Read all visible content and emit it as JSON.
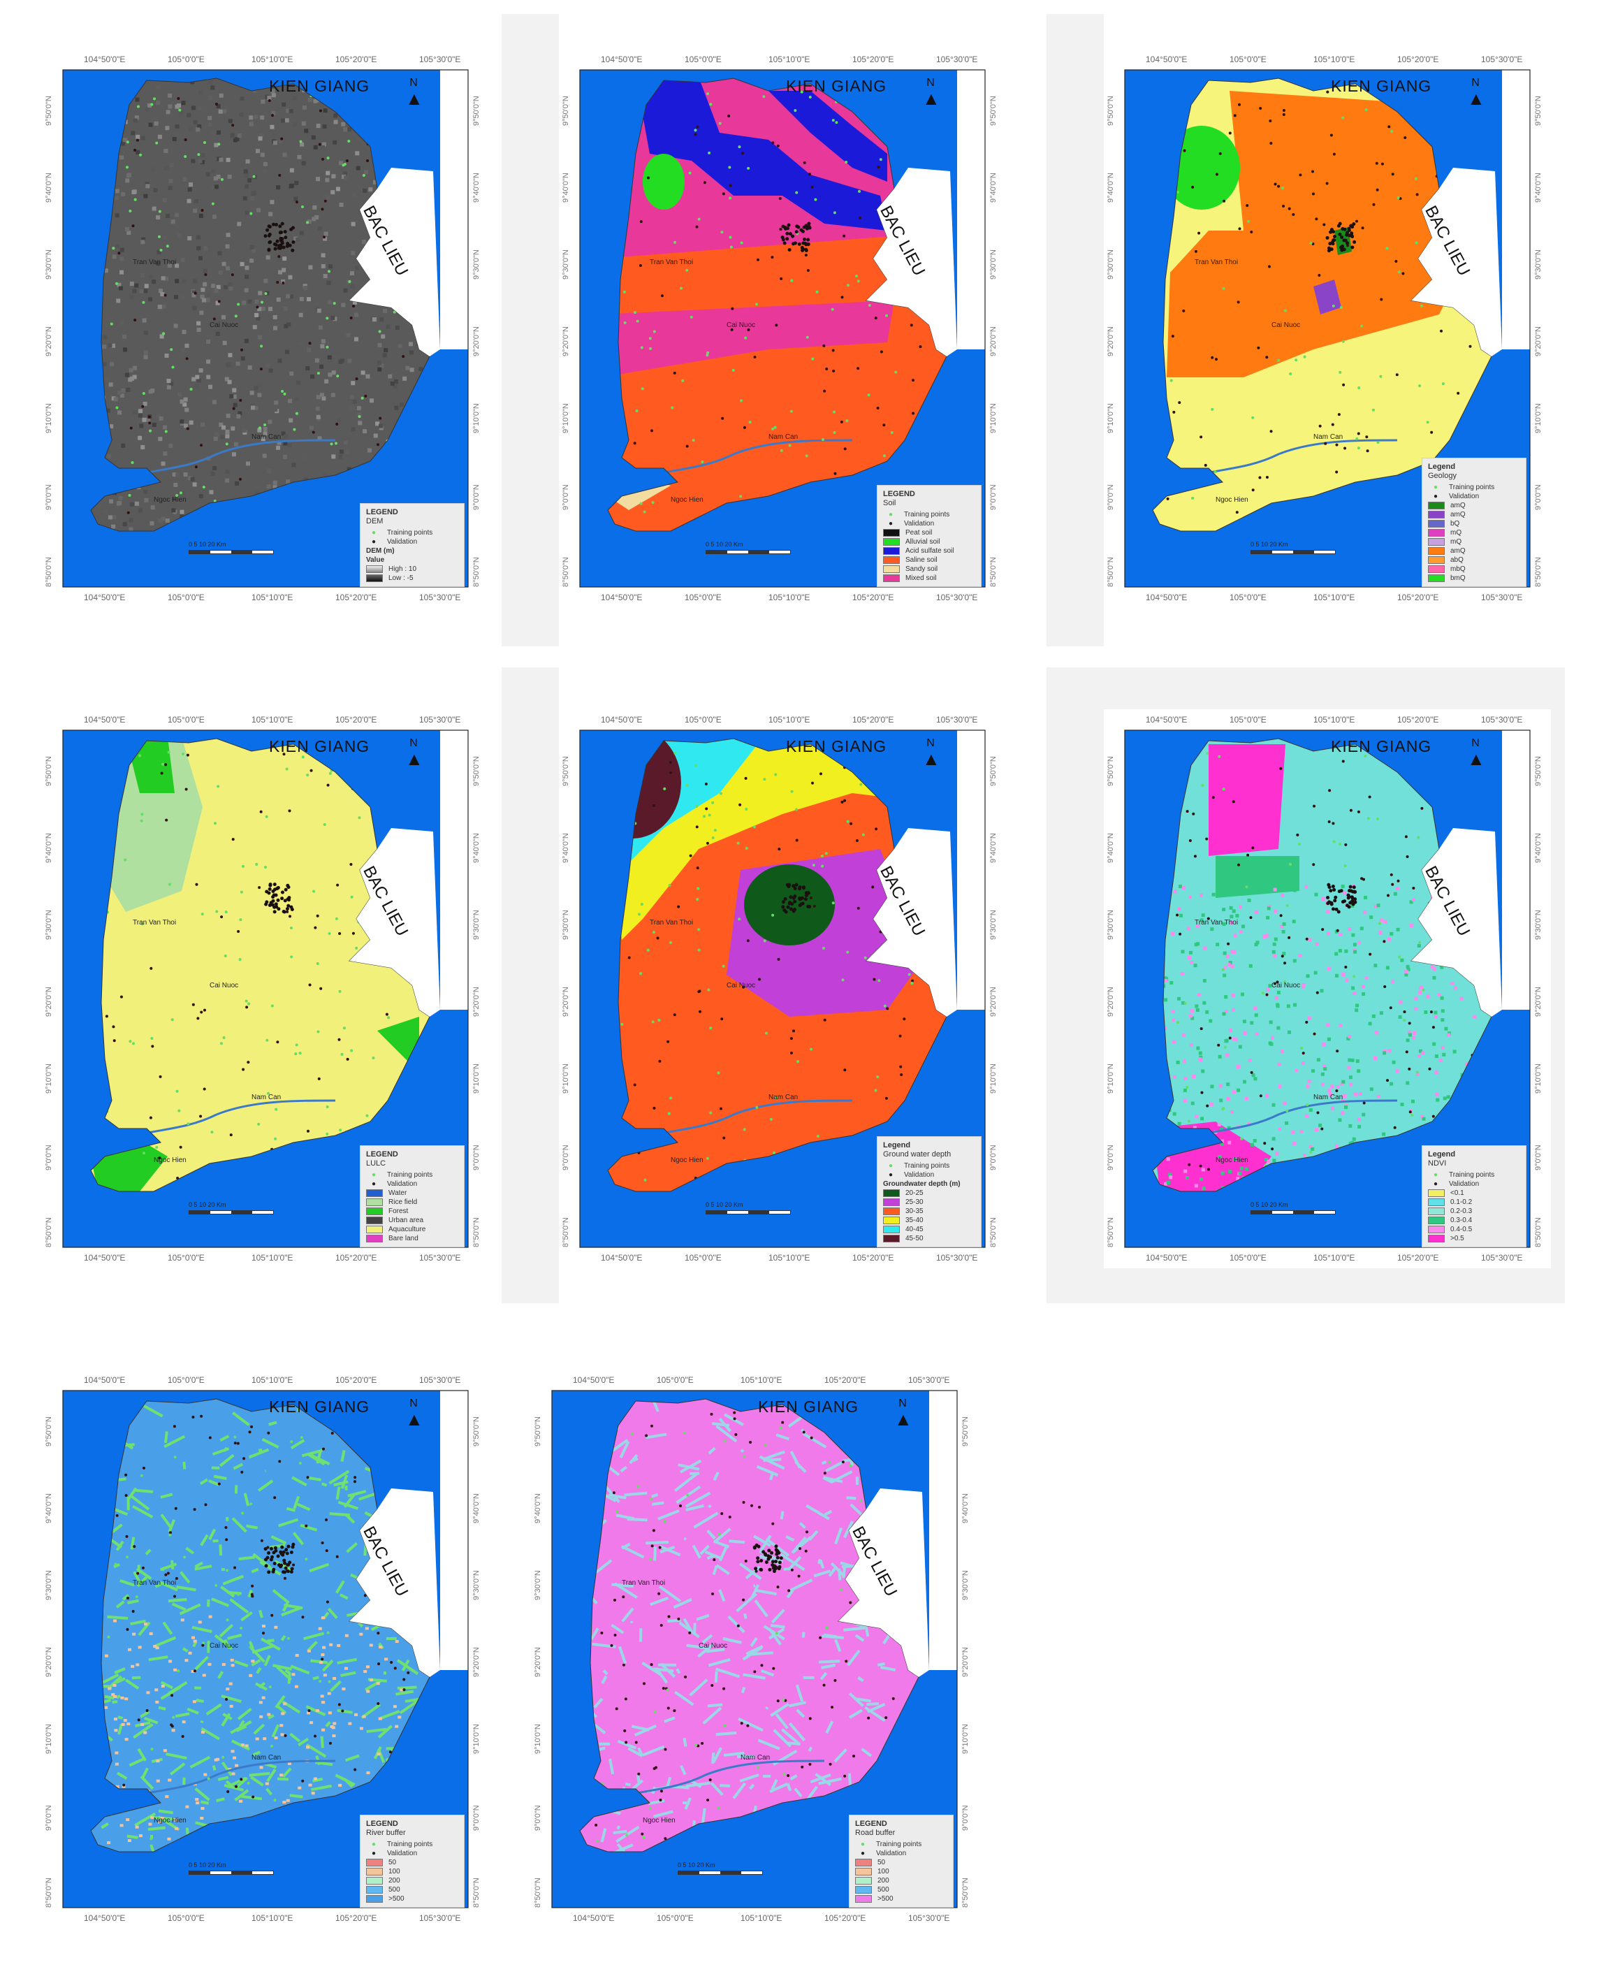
{
  "figure": {
    "maps": [
      {
        "id": "dem",
        "title": "KIEN GIANG",
        "neighbor": "BAC LIEU",
        "north": "N",
        "lon_ticks": [
          "104°50'0\"E",
          "105°0'0\"E",
          "105°10'0\"E",
          "105°20'0\"E",
          "105°30'0\"E"
        ],
        "lat_ticks": [
          "9°50'0\"N",
          "9°40'0\"N",
          "9°30'0\"N",
          "9°20'0\"N",
          "9°10'0\"N",
          "9°0'0\"N",
          "8°50'0\"N"
        ],
        "legend": {
          "head": "LEGEND",
          "sub": "DEM",
          "rows": [
            {
              "kind": "dot",
              "color": "#66dd66",
              "label": "Training points"
            },
            {
              "kind": "dot",
              "color": "#222222",
              "label": "Validation"
            },
            {
              "kind": "head",
              "label": "DEM (m)"
            },
            {
              "kind": "head",
              "label": "Value"
            },
            {
              "kind": "ramp",
              "label": "High : 10"
            },
            {
              "kind": "ramp2",
              "label": "Low : -5"
            }
          ]
        },
        "places": [
          "Tran Van Thoi",
          "Cai Nuoc",
          "Ngoc Hien",
          "Nam Can"
        ]
      },
      {
        "id": "soil",
        "title": "KIEN GIANG",
        "neighbor": "BAC LIEU",
        "north": "N",
        "lon_ticks": [
          "104°50'0\"E",
          "105°0'0\"E",
          "105°10'0\"E",
          "105°20'0\"E",
          "105°30'0\"E"
        ],
        "lat_ticks": [
          "9°50'0\"N",
          "9°40'0\"N",
          "9°30'0\"N",
          "9°20'0\"N",
          "9°10'0\"N",
          "9°0'0\"N",
          "8°50'0\"N"
        ],
        "legend": {
          "head": "LEGEND",
          "sub": "Soil",
          "rows": [
            {
              "kind": "dot",
              "color": "#66dd66",
              "label": "Training points"
            },
            {
              "kind": "dot",
              "color": "#222222",
              "label": "Validation"
            },
            {
              "kind": "sw",
              "color": "#111111",
              "label": "Peat soil"
            },
            {
              "kind": "sw",
              "color": "#22dd22",
              "label": "Alluvial soil"
            },
            {
              "kind": "sw",
              "color": "#1a1ad8",
              "label": "Acid sulfate soil"
            },
            {
              "kind": "sw",
              "color": "#ff5a1f",
              "label": "Saline soil"
            },
            {
              "kind": "sw",
              "color": "#f2dca0",
              "label": "Sandy soil"
            },
            {
              "kind": "sw",
              "color": "#e8389a",
              "label": "Mixed soil"
            }
          ]
        },
        "places": [
          "Tran Van Thoi",
          "Cai Nuoc",
          "Ngoc Hien",
          "Nam Can"
        ]
      },
      {
        "id": "geology",
        "title": "KIEN GIANG",
        "neighbor": "BAC LIEU",
        "north": "N",
        "lon_ticks": [
          "104°50'0\"E",
          "105°0'0\"E",
          "105°10'0\"E",
          "105°20'0\"E",
          "105°30'0\"E"
        ],
        "lat_ticks": [
          "9°50'0\"N",
          "9°40'0\"N",
          "9°30'0\"N",
          "9°20'0\"N",
          "9°10'0\"N",
          "9°0'0\"N",
          "8°50'0\"N"
        ],
        "legend": {
          "head": "Legend",
          "sub": "Geology",
          "rows": [
            {
              "kind": "dot",
              "color": "#66dd66",
              "label": "Training points"
            },
            {
              "kind": "dot",
              "color": "#222222",
              "label": "Validation"
            },
            {
              "kind": "sw",
              "color": "#1a8a1a",
              "label": "amQ"
            },
            {
              "kind": "sw",
              "color": "#8a44c8",
              "label": "amQ"
            },
            {
              "kind": "sw",
              "color": "#6666cc",
              "label": "bQ"
            },
            {
              "kind": "sw",
              "color": "#e040c0",
              "label": "mQ"
            },
            {
              "kind": "sw",
              "color": "#c8a0e0",
              "label": "mQ"
            },
            {
              "kind": "sw",
              "color": "#ff7a10",
              "label": "amQ"
            },
            {
              "kind": "sw",
              "color": "#ff9a30",
              "label": "abQ"
            },
            {
              "kind": "sw",
              "color": "#ff66aa",
              "label": "mbQ"
            },
            {
              "kind": "sw",
              "color": "#22dd22",
              "label": "bmQ"
            }
          ]
        },
        "places": [
          "Tran Van Thoi",
          "Cai Nuoc",
          "Ngoc Hien",
          "Nam Can"
        ]
      },
      {
        "id": "lulc",
        "title": "KIEN GIANG",
        "neighbor": "BAC LIEU",
        "north": "N",
        "lon_ticks": [
          "104°50'0\"E",
          "105°0'0\"E",
          "105°10'0\"E",
          "105°20'0\"E",
          "105°30'0\"E"
        ],
        "lat_ticks": [
          "9°50'0\"N",
          "9°40'0\"N",
          "9°30'0\"N",
          "9°20'0\"N",
          "9°10'0\"N",
          "9°0'0\"N",
          "8°50'0\"N"
        ],
        "legend": {
          "head": "LEGEND",
          "sub": "LULC",
          "rows": [
            {
              "kind": "dot",
              "color": "#66dd66",
              "label": "Training points"
            },
            {
              "kind": "dot",
              "color": "#222222",
              "label": "Validation"
            },
            {
              "kind": "sw",
              "color": "#2060d0",
              "label": "Water"
            },
            {
              "kind": "sw",
              "color": "#b0e0a0",
              "label": "Rice field"
            },
            {
              "kind": "sw",
              "color": "#22cc22",
              "label": "Forest"
            },
            {
              "kind": "sw",
              "color": "#444444",
              "label": "Urban area"
            },
            {
              "kind": "sw",
              "color": "#f0f07a",
              "label": "Aquaculture"
            },
            {
              "kind": "sw",
              "color": "#e040c0",
              "label": "Bare land"
            }
          ]
        },
        "places": [
          "Tran Van Thoi",
          "Cai Nuoc",
          "Ngoc Hien",
          "Nam Can"
        ]
      },
      {
        "id": "groundwater",
        "title": "KIEN GIANG",
        "neighbor": "BAC LIEU",
        "north": "N",
        "lon_ticks": [
          "104°50'0\"E",
          "105°0'0\"E",
          "105°10'0\"E",
          "105°20'0\"E",
          "105°30'0\"E"
        ],
        "lat_ticks": [
          "9°50'0\"N",
          "9°40'0\"N",
          "9°30'0\"N",
          "9°20'0\"N",
          "9°10'0\"N",
          "9°0'0\"N",
          "8°50'0\"N"
        ],
        "legend": {
          "head": "Legend",
          "sub": "Ground water depth",
          "rows": [
            {
              "kind": "dot",
              "color": "#66dd66",
              "label": "Training points"
            },
            {
              "kind": "dot",
              "color": "#222222",
              "label": "Validation"
            },
            {
              "kind": "head",
              "label": "Groundwater depth (m)"
            },
            {
              "kind": "sw",
              "color": "#0f5a1a",
              "label": "20-25"
            },
            {
              "kind": "sw",
              "color": "#c040d8",
              "label": "25-30"
            },
            {
              "kind": "sw",
              "color": "#ff5a1f",
              "label": "30-35"
            },
            {
              "kind": "sw",
              "color": "#f2ef20",
              "label": "35-40"
            },
            {
              "kind": "sw",
              "color": "#30e8f0",
              "label": "40-45"
            },
            {
              "kind": "sw",
              "color": "#5a1a2a",
              "label": "45-50"
            }
          ]
        },
        "places": [
          "Tran Van Thoi",
          "Cai Nuoc",
          "Ngoc Hien",
          "Nam Can"
        ]
      },
      {
        "id": "ndvi",
        "title": "KIEN GIANG",
        "neighbor": "BAC LIEU",
        "north": "N",
        "lon_ticks": [
          "104°50'0\"E",
          "105°0'0\"E",
          "105°10'0\"E",
          "105°20'0\"E",
          "105°30'0\"E"
        ],
        "lat_ticks": [
          "9°50'0\"N",
          "9°40'0\"N",
          "9°30'0\"N",
          "9°20'0\"N",
          "9°10'0\"N",
          "9°0'0\"N",
          "8°50'0\"N"
        ],
        "legend": {
          "head": "Legend",
          "sub": "NDVI",
          "rows": [
            {
              "kind": "dot",
              "color": "#66dd66",
              "label": "Training points"
            },
            {
              "kind": "dot",
              "color": "#222222",
              "label": "Validation"
            },
            {
              "kind": "sw",
              "color": "#f2ef60",
              "label": "<0.1"
            },
            {
              "kind": "sw",
              "color": "#60e0e8",
              "label": "0.1-0.2"
            },
            {
              "kind": "sw",
              "color": "#90e8d8",
              "label": "0.2-0.3"
            },
            {
              "kind": "sw",
              "color": "#30c880",
              "label": "0.3-0.4"
            },
            {
              "kind": "sw",
              "color": "#ff88ee",
              "label": "0.4-0.5"
            },
            {
              "kind": "sw",
              "color": "#ff30d0",
              "label": ">0.5"
            }
          ]
        },
        "places": [
          "Tran Van Thoi",
          "Cai Nuoc",
          "Ngoc Hien",
          "Nam Can"
        ]
      },
      {
        "id": "river",
        "title": "KIEN GIANG",
        "neighbor": "BAC LIEU",
        "north": "N",
        "lon_ticks": [
          "104°50'0\"E",
          "105°0'0\"E",
          "105°10'0\"E",
          "105°20'0\"E",
          "105°30'0\"E"
        ],
        "lat_ticks": [
          "9°50'0\"N",
          "9°40'0\"N",
          "9°30'0\"N",
          "9°20'0\"N",
          "9°10'0\"N",
          "9°0'0\"N",
          "8°50'0\"N"
        ],
        "legend": {
          "head": "LEGEND",
          "sub": "River buffer",
          "rows": [
            {
              "kind": "dot",
              "color": "#66dd66",
              "label": "Training points"
            },
            {
              "kind": "dot",
              "color": "#222222",
              "label": "Validation"
            },
            {
              "kind": "sw",
              "color": "#f08080",
              "label": "50"
            },
            {
              "kind": "sw",
              "color": "#f5c49a",
              "label": "100"
            },
            {
              "kind": "sw",
              "color": "#b0f0c8",
              "label": "200"
            },
            {
              "kind": "sw",
              "color": "#60b8f0",
              "label": "500"
            },
            {
              "kind": "sw",
              "color": "#4aa0e8",
              "label": ">500"
            }
          ]
        },
        "places": [
          "Tran Van Thoi",
          "Cai Nuoc",
          "Ngoc Hien",
          "Nam Can"
        ]
      },
      {
        "id": "road",
        "title": "KIEN GIANG",
        "neighbor": "BAC LIEU",
        "north": "N",
        "lon_ticks": [
          "104°50'0\"E",
          "105°0'0\"E",
          "105°10'0\"E",
          "105°20'0\"E",
          "105°30'0\"E"
        ],
        "lat_ticks": [
          "9°50'0\"N",
          "9°40'0\"N",
          "9°30'0\"N",
          "9°20'0\"N",
          "9°10'0\"N",
          "9°0'0\"N",
          "8°50'0\"N"
        ],
        "legend": {
          "head": "LEGEND",
          "sub": "Road buffer",
          "rows": [
            {
              "kind": "dot",
              "color": "#66dd66",
              "label": "Training points"
            },
            {
              "kind": "dot",
              "color": "#222222",
              "label": "Validation"
            },
            {
              "kind": "sw",
              "color": "#f08080",
              "label": "50"
            },
            {
              "kind": "sw",
              "color": "#f5c49a",
              "label": "100"
            },
            {
              "kind": "sw",
              "color": "#b0f0c8",
              "label": "200"
            },
            {
              "kind": "sw",
              "color": "#60b8f0",
              "label": "500"
            },
            {
              "kind": "sw",
              "color": "#f07aea",
              "label": ">500"
            }
          ]
        },
        "places": [
          "Tran Van Thoi",
          "Cai Nuoc",
          "Ngoc Hien",
          "Nam Can"
        ]
      }
    ],
    "scale_label": "0  5  10  20 Km",
    "colors": {
      "sea": "#0a6ee8",
      "dem_land": "#5a5a5a",
      "soil_main": "#ff5a1f",
      "soil_pink": "#e8389a",
      "soil_blue": "#1a1ad8",
      "geo_yellow": "#f6f47a",
      "geo_orange": "#ff7a10",
      "lulc_yellow": "#f0f07a",
      "lulc_green": "#22cc22",
      "gw_orange": "#ff5a1f",
      "gw_purple": "#c040d8",
      "ndvi_cyan": "#70e0d8",
      "ndvi_pink": "#ff30d0",
      "river_blue": "#4aa0e8",
      "river_green": "#70e070",
      "road_pink": "#f07aea",
      "road_cyan": "#9ad8e8"
    }
  }
}
